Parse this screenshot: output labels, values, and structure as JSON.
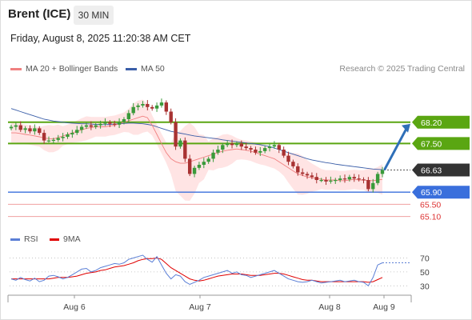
{
  "header": {
    "instrument": "Brent (ICE)",
    "interval": "30 MIN",
    "datetime": "Friday, August 8, 2025 11:20:38 AM CET"
  },
  "legend": {
    "ma20": {
      "label": "MA 20 + Bollinger Bands",
      "color": "#f08080"
    },
    "ma50": {
      "label": "MA 50",
      "color": "#3a5ea8"
    },
    "rsi": {
      "label": "RSI",
      "color": "#5b7fd6"
    },
    "rsi_ma": {
      "label": "9MA",
      "color": "#e00000"
    }
  },
  "copyright": "Research © 2025 Trading Central",
  "colors": {
    "bull": "#3a9a3a",
    "bear": "#a83232",
    "resistance": "#5aa612",
    "support": "#3a6fdc",
    "support_thin": "#f0a0a0",
    "current": "#333333",
    "band_fill": "#ffe4e4",
    "arrow": "#2f6fb8"
  },
  "chart_data": [
    {
      "type": "candlestick",
      "title": "",
      "x_ticks": [
        "Aug 6",
        "Aug 7",
        "Aug 8",
        "Aug 9"
      ],
      "ylim": [
        64.8,
        69.8
      ],
      "levels": [
        {
          "value": 68.2,
          "label": "68.20",
          "kind": "resistance"
        },
        {
          "value": 67.5,
          "label": "67.50",
          "kind": "resistance"
        },
        {
          "value": 66.63,
          "label": "66.63",
          "kind": "current"
        },
        {
          "value": 65.9,
          "label": "65.90",
          "kind": "support"
        },
        {
          "value": 65.5,
          "label": "65.50",
          "kind": "support_minor"
        },
        {
          "value": 65.1,
          "label": "65.10",
          "kind": "support_minor"
        }
      ],
      "forecast_arrow": {
        "from": 66.63,
        "to": 68.2
      },
      "series": [
        {
          "name": "Price",
          "values": [
            68.05,
            68.1,
            67.95,
            68.0,
            67.9,
            68.0,
            67.85,
            67.6,
            67.6,
            67.62,
            67.68,
            67.72,
            67.8,
            67.85,
            67.95,
            68.05,
            68.1,
            68.05,
            68.1,
            68.15,
            68.2,
            68.15,
            68.12,
            68.2,
            68.3,
            68.5,
            68.7,
            68.75,
            68.8,
            68.7,
            68.65,
            68.75,
            68.85,
            68.55,
            68.2,
            67.4,
            67.6,
            67.0,
            66.5,
            66.7,
            66.8,
            66.9,
            67.0,
            67.2,
            67.3,
            67.45,
            67.5,
            67.45,
            67.5,
            67.4,
            67.35,
            67.3,
            67.2,
            67.25,
            67.35,
            67.4,
            67.45,
            67.3,
            67.1,
            66.9,
            66.75,
            66.55,
            66.5,
            66.45,
            66.4,
            66.3,
            66.3,
            66.25,
            66.28,
            66.3,
            66.35,
            66.32,
            66.4,
            66.35,
            66.32,
            66.3,
            66.0,
            66.2,
            66.5,
            66.63
          ]
        },
        {
          "name": "MA 20",
          "values": [
            67.85,
            67.85,
            67.83,
            67.8,
            67.78,
            67.75,
            67.72,
            67.68,
            67.66,
            67.65,
            67.7,
            67.75,
            67.8,
            67.85,
            67.9,
            67.95,
            68.0,
            68.02,
            68.05,
            68.05,
            68.05,
            68.08,
            68.1,
            68.15,
            68.2,
            68.25,
            68.3,
            68.35,
            68.4,
            68.35,
            68.1,
            67.8,
            67.5,
            67.2,
            67.0,
            66.9,
            66.85,
            66.85,
            66.9,
            66.95,
            67.0,
            67.05,
            67.1,
            67.15,
            67.2,
            67.25,
            67.28,
            67.3,
            67.32,
            67.3,
            67.28,
            67.25,
            67.2,
            67.15,
            67.1,
            67.05,
            67.0,
            66.9,
            66.8,
            66.7,
            66.6,
            66.5,
            66.45,
            66.4,
            66.38,
            66.35,
            66.33,
            66.3,
            66.3,
            66.3,
            66.28,
            66.28,
            66.3,
            66.32,
            66.3,
            66.3,
            66.28,
            66.28,
            66.3,
            66.32
          ]
        },
        {
          "name": "MA 50",
          "values": [
            68.65,
            68.6,
            68.55,
            68.5,
            68.45,
            68.4,
            68.35,
            68.3,
            68.27,
            68.24,
            68.22,
            68.2,
            68.18,
            68.17,
            68.16,
            68.15,
            68.15,
            68.14,
            68.13,
            68.12,
            68.12,
            68.13,
            68.14,
            68.15,
            68.16,
            68.17,
            68.17,
            68.16,
            68.15,
            68.13,
            68.1,
            68.05,
            68.0,
            67.95,
            67.9,
            67.87,
            67.84,
            67.81,
            67.78,
            67.75,
            67.73,
            67.71,
            67.69,
            67.67,
            67.65,
            67.62,
            67.6,
            67.58,
            67.56,
            67.54,
            67.52,
            67.5,
            67.48,
            67.46,
            67.43,
            67.4,
            67.35,
            67.3,
            67.25,
            67.2,
            67.15,
            67.1,
            67.05,
            67.0,
            66.96,
            66.93,
            66.9,
            66.87,
            66.85,
            66.82,
            66.8,
            66.78,
            66.76,
            66.74,
            66.72,
            66.7,
            66.68,
            66.66,
            66.65,
            66.64
          ]
        }
      ]
    },
    {
      "type": "line",
      "title": "",
      "yticks": [
        30,
        50,
        70
      ],
      "ylim": [
        20,
        82
      ],
      "series": [
        {
          "name": "RSI",
          "values": [
            40,
            38,
            42,
            39,
            37,
            41,
            36,
            38,
            44,
            45,
            43,
            40,
            42,
            46,
            50,
            54,
            55,
            50,
            52,
            56,
            58,
            60,
            62,
            61,
            63,
            68,
            70,
            72,
            74,
            68,
            64,
            72,
            60,
            48,
            40,
            46,
            44,
            36,
            32,
            35,
            38,
            42,
            44,
            46,
            48,
            50,
            52,
            48,
            50,
            46,
            45,
            42,
            44,
            46,
            48,
            50,
            52,
            48,
            44,
            40,
            38,
            36,
            35,
            36,
            38,
            36,
            34,
            35,
            36,
            37,
            38,
            36,
            37,
            38,
            36,
            35,
            30,
            42,
            60,
            63
          ]
        },
        {
          "name": "9MA",
          "values": [
            40,
            40,
            40,
            40,
            40,
            40,
            40,
            40,
            40,
            41,
            42,
            42,
            42,
            43,
            44,
            46,
            48,
            49,
            50,
            52,
            53,
            55,
            57,
            58,
            59,
            61,
            63,
            66,
            68,
            69,
            69,
            70,
            68,
            62,
            56,
            52,
            48,
            44,
            40,
            38,
            37,
            38,
            40,
            42,
            44,
            45,
            46,
            47,
            47,
            47,
            46,
            45,
            45,
            45,
            46,
            47,
            48,
            48,
            47,
            45,
            43,
            41,
            39,
            38,
            38,
            37,
            36,
            36,
            36,
            36,
            36,
            36,
            36,
            36,
            36,
            36,
            35,
            36,
            39,
            42
          ]
        }
      ]
    }
  ]
}
